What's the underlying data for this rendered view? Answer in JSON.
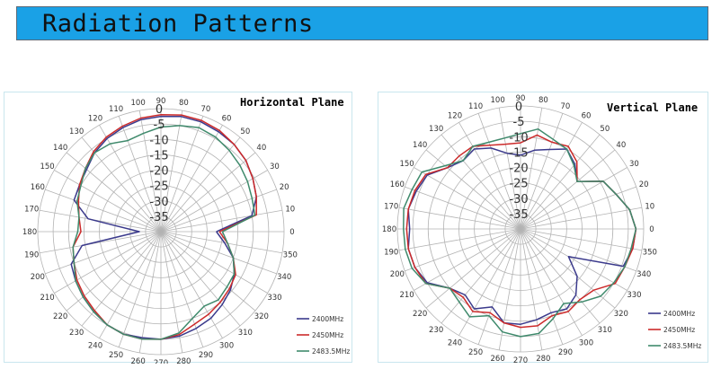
{
  "header": {
    "title": "Radiation Patterns"
  },
  "chart_data": [
    {
      "type": "polar-line",
      "title": "Horizontal Plane",
      "radial_ticks": [
        "0",
        "-5",
        "-10",
        "-15",
        "-20",
        "-25",
        "-30",
        "-35"
      ],
      "rlim": [
        -40,
        0
      ],
      "angle_ticks": [
        0,
        10,
        20,
        30,
        40,
        50,
        60,
        70,
        80,
        90,
        100,
        110,
        120,
        130,
        140,
        150,
        160,
        170,
        180,
        190,
        200,
        210,
        220,
        230,
        240,
        250,
        260,
        270,
        280,
        290,
        300,
        310,
        320,
        330,
        340,
        350
      ],
      "legend_placement": "bottom-right",
      "angles": [
        0,
        10,
        20,
        30,
        40,
        50,
        60,
        70,
        80,
        90,
        100,
        110,
        120,
        130,
        140,
        150,
        160,
        170,
        180,
        190,
        200,
        210,
        220,
        230,
        240,
        250,
        260,
        270,
        280,
        290,
        300,
        310,
        320,
        330,
        340,
        350
      ],
      "series": [
        {
          "name": "2400MHz",
          "color": "#3b3a8c",
          "values": [
            -22,
            -10,
            -7,
            -5.5,
            -4,
            -3,
            -2.5,
            -2,
            -2,
            -2.5,
            -3,
            -4,
            -5,
            -6.5,
            -8.5,
            -9.5,
            -10,
            -16,
            -33,
            -14,
            -9,
            -8,
            -7,
            -6,
            -5,
            -4.5,
            -5,
            -5,
            -5.5,
            -6.5,
            -7.5,
            -9,
            -10.5,
            -12.5,
            -15,
            -19
          ]
        },
        {
          "name": "2450MHz",
          "color": "#cc2a2a",
          "values": [
            -21,
            -8.5,
            -7,
            -5.5,
            -4,
            -3,
            -2,
            -1.5,
            -1.5,
            -2,
            -2.5,
            -3.5,
            -4.5,
            -6,
            -8,
            -9.5,
            -11.5,
            -13,
            -14,
            -11,
            -10,
            -8.5,
            -7.5,
            -6.5,
            -5,
            -4.5,
            -4.5,
            -5,
            -6,
            -8,
            -9,
            -10,
            -11,
            -12,
            -15,
            -18
          ]
        },
        {
          "name": "2483.5MHz",
          "color": "#3f8a6c",
          "values": [
            -20,
            -9,
            -8.5,
            -7.5,
            -6.5,
            -5.5,
            -4.5,
            -4,
            -5,
            -6,
            -7.5,
            -8.5,
            -7,
            -6.5,
            -8,
            -10,
            -11,
            -13,
            -13,
            -11,
            -10,
            -8,
            -7,
            -6,
            -5,
            -4.5,
            -4.5,
            -5,
            -6.5,
            -10,
            -12,
            -11,
            -12,
            -12.5,
            -15,
            -18
          ]
        }
      ]
    },
    {
      "type": "polar-line",
      "title": "Vertical Plane",
      "radial_ticks": [
        "0",
        "-5",
        "-10",
        "-15",
        "-20",
        "-25",
        "-30",
        "-35"
      ],
      "rlim": [
        -40,
        0
      ],
      "angle_ticks": [
        0,
        10,
        20,
        30,
        40,
        50,
        60,
        70,
        80,
        90,
        100,
        110,
        120,
        130,
        140,
        150,
        160,
        170,
        180,
        190,
        200,
        210,
        220,
        230,
        240,
        250,
        260,
        270,
        280,
        290,
        300,
        310,
        320,
        330,
        340,
        350
      ],
      "legend_placement": "bottom-right",
      "angles": [
        0,
        10,
        20,
        30,
        40,
        50,
        60,
        70,
        80,
        90,
        100,
        110,
        120,
        130,
        140,
        150,
        160,
        170,
        180,
        190,
        200,
        210,
        220,
        230,
        240,
        250,
        260,
        270,
        280,
        290,
        300,
        310,
        320,
        330,
        340,
        350
      ],
      "series": [
        {
          "name": "2400MHz",
          "color": "#3b3a8c",
          "values": [
            -2.5,
            -4,
            -7,
            -9,
            -16,
            -12.5,
            -10,
            -12.5,
            -14,
            -16,
            -15,
            -12,
            -10,
            -11,
            -9,
            -5,
            -4,
            -3,
            -4,
            -3,
            -3.5,
            -5,
            -10,
            -12,
            -10,
            -13,
            -9,
            -9,
            -10,
            -11,
            -10,
            -12,
            -16,
            -22,
            -4.5,
            -3
          ]
        },
        {
          "name": "2450MHz",
          "color": "#cc2a2a",
          "values": [
            -2.5,
            -4,
            -7,
            -9,
            -16,
            -11.5,
            -9,
            -10,
            -9,
            -12,
            -12,
            -11,
            -9,
            -9,
            -9,
            -4.5,
            -3.5,
            -3,
            -3,
            -3,
            -3.5,
            -4.5,
            -10,
            -11,
            -9,
            -11,
            -9,
            -8,
            -8,
            -10,
            -9,
            -10,
            -9,
            -4.5,
            -4,
            -3
          ]
        },
        {
          "name": "2483.5MHz",
          "color": "#3f8a6c",
          "values": [
            -2.5,
            -4,
            -7,
            -9,
            -16,
            -13,
            -10,
            -9,
            -7,
            -9,
            -10,
            -10,
            -9,
            -11,
            -8,
            -3,
            -2.5,
            -1.5,
            -2,
            -2,
            -2.5,
            -4.5,
            -10,
            -9,
            -7,
            -10,
            -6,
            -5,
            -5.5,
            -9,
            -12,
            -9,
            -6,
            -5,
            -4,
            -3.5
          ]
        }
      ]
    }
  ]
}
